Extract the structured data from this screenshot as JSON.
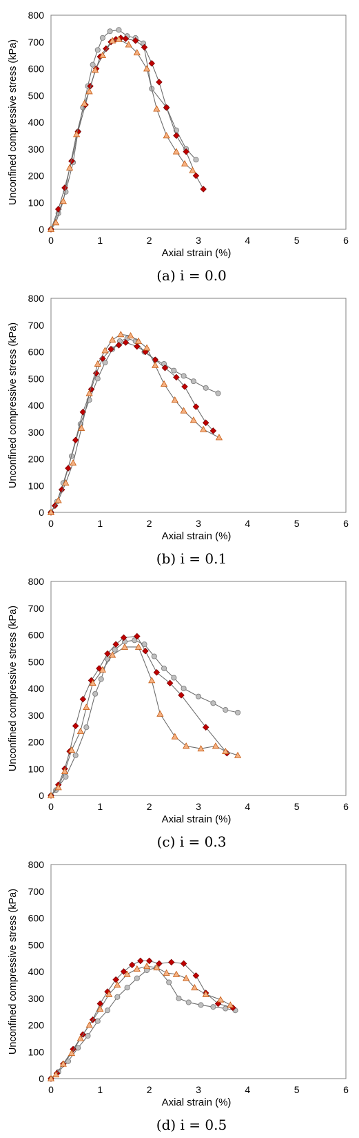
{
  "chart_data": [
    {
      "type": "scatter",
      "caption": "(a) i = 0.0",
      "xlabel": "Axial strain (%)",
      "ylabel": "Unconfined compressive stress (kPa)",
      "xlim": [
        0,
        6
      ],
      "ylim": [
        0,
        800
      ],
      "xticks": [
        "0",
        "1",
        "2",
        "3",
        "4",
        "5",
        "6"
      ],
      "yticks": [
        "0",
        "100",
        "200",
        "300",
        "400",
        "500",
        "600",
        "700",
        "800"
      ],
      "grid": false,
      "legend": "none",
      "series": [
        {
          "marker": "circle",
          "color": "#BFBFBF",
          "x": [
            0,
            0.15,
            0.3,
            0.45,
            0.55,
            0.65,
            0.75,
            0.85,
            0.95,
            1.05,
            1.2,
            1.38,
            1.55,
            1.72,
            1.88,
            2.05,
            2.35,
            2.55,
            2.75,
            2.95
          ],
          "y": [
            0,
            60,
            140,
            250,
            365,
            455,
            535,
            615,
            670,
            715,
            740,
            745,
            722,
            715,
            695,
            525,
            455,
            370,
            300,
            260
          ]
        },
        {
          "marker": "diamond",
          "color": "#C00000",
          "x": [
            0,
            0.15,
            0.28,
            0.42,
            0.55,
            0.7,
            0.8,
            0.92,
            1.0,
            1.12,
            1.22,
            1.32,
            1.42,
            1.52,
            1.72,
            1.9,
            2.05,
            2.2,
            2.35,
            2.55,
            2.75,
            2.95,
            3.1
          ],
          "y": [
            0,
            75,
            155,
            255,
            365,
            465,
            535,
            600,
            645,
            675,
            700,
            710,
            715,
            712,
            705,
            680,
            620,
            550,
            455,
            350,
            290,
            200,
            150
          ]
        },
        {
          "marker": "triangle",
          "color": "#F4B183",
          "x": [
            0,
            0.1,
            0.25,
            0.38,
            0.52,
            0.68,
            0.78,
            0.9,
            1.05,
            1.25,
            1.38,
            1.58,
            1.75,
            1.95,
            2.15,
            2.35,
            2.55,
            2.72,
            2.88
          ],
          "y": [
            0,
            25,
            105,
            230,
            355,
            470,
            515,
            595,
            650,
            705,
            710,
            690,
            660,
            600,
            450,
            350,
            290,
            245,
            220
          ]
        }
      ]
    },
    {
      "type": "scatter",
      "caption": "(b) i = 0.1",
      "xlabel": "Axial strain (%)",
      "ylabel": "Unconfined compressive stress (kPa)",
      "xlim": [
        0,
        6
      ],
      "ylim": [
        0,
        800
      ],
      "xticks": [
        "0",
        "1",
        "2",
        "3",
        "4",
        "5",
        "6"
      ],
      "yticks": [
        "0",
        "100",
        "200",
        "300",
        "400",
        "500",
        "600",
        "700",
        "800"
      ],
      "grid": false,
      "legend": "none",
      "series": [
        {
          "marker": "circle",
          "color": "#BFBFBF",
          "x": [
            0,
            0.12,
            0.25,
            0.42,
            0.6,
            0.78,
            0.95,
            1.1,
            1.25,
            1.4,
            1.55,
            1.72,
            1.9,
            2.12,
            2.3,
            2.5,
            2.7,
            2.9,
            3.15,
            3.4
          ],
          "y": [
            0,
            40,
            110,
            210,
            330,
            420,
            500,
            560,
            610,
            640,
            650,
            640,
            600,
            570,
            555,
            530,
            510,
            490,
            465,
            445
          ]
        },
        {
          "marker": "diamond",
          "color": "#C00000",
          "x": [
            0,
            0.08,
            0.22,
            0.35,
            0.5,
            0.65,
            0.82,
            0.92,
            1.05,
            1.22,
            1.38,
            1.52,
            1.75,
            1.92,
            2.12,
            2.32,
            2.55,
            2.72,
            2.95,
            3.15,
            3.3
          ],
          "y": [
            0,
            25,
            85,
            165,
            270,
            375,
            460,
            520,
            575,
            610,
            625,
            635,
            620,
            600,
            570,
            540,
            505,
            470,
            395,
            335,
            305
          ]
        },
        {
          "marker": "triangle",
          "color": "#F4B183",
          "x": [
            0,
            0.15,
            0.3,
            0.45,
            0.62,
            0.78,
            0.95,
            1.1,
            1.25,
            1.42,
            1.62,
            1.78,
            1.95,
            2.12,
            2.3,
            2.52,
            2.7,
            2.9,
            3.1,
            3.42
          ],
          "y": [
            0,
            45,
            110,
            185,
            315,
            445,
            555,
            605,
            645,
            665,
            660,
            640,
            615,
            550,
            480,
            420,
            380,
            345,
            310,
            280
          ]
        }
      ]
    },
    {
      "type": "scatter",
      "caption": "(c) i = 0.3",
      "xlabel": "Axial strain (%)",
      "ylabel": "Unconfined compressive stress (kPa)",
      "xlim": [
        0,
        6
      ],
      "ylim": [
        0,
        800
      ],
      "xticks": [
        "0",
        "1",
        "2",
        "3",
        "4",
        "5",
        "6"
      ],
      "yticks": [
        "0",
        "100",
        "200",
        "300",
        "400",
        "500",
        "600",
        "700",
        "800"
      ],
      "grid": false,
      "legend": "none",
      "series": [
        {
          "marker": "circle",
          "color": "#BFBFBF",
          "x": [
            0,
            0.1,
            0.3,
            0.5,
            0.72,
            0.9,
            1.02,
            1.15,
            1.3,
            1.5,
            1.7,
            1.9,
            2.1,
            2.3,
            2.5,
            2.7,
            3.0,
            3.3,
            3.55,
            3.8
          ],
          "y": [
            0,
            20,
            70,
            150,
            255,
            380,
            435,
            510,
            545,
            575,
            580,
            565,
            520,
            475,
            440,
            400,
            370,
            345,
            320,
            310
          ]
        },
        {
          "marker": "diamond",
          "color": "#C00000",
          "x": [
            0,
            0.15,
            0.28,
            0.38,
            0.5,
            0.65,
            0.82,
            0.98,
            1.15,
            1.32,
            1.48,
            1.75,
            1.92,
            2.15,
            2.42,
            2.65,
            3.15,
            3.58
          ],
          "y": [
            0,
            40,
            100,
            165,
            260,
            360,
            430,
            475,
            530,
            565,
            590,
            595,
            540,
            460,
            420,
            375,
            255,
            158
          ]
        },
        {
          "marker": "triangle",
          "color": "#F4B183",
          "x": [
            0,
            0.15,
            0.28,
            0.42,
            0.6,
            0.72,
            0.85,
            1.05,
            1.25,
            1.5,
            1.78,
            2.05,
            2.22,
            2.52,
            2.75,
            3.05,
            3.35,
            3.55,
            3.8
          ],
          "y": [
            0,
            30,
            90,
            170,
            240,
            330,
            420,
            470,
            525,
            555,
            555,
            430,
            305,
            220,
            185,
            175,
            185,
            165,
            150
          ]
        }
      ]
    },
    {
      "type": "scatter",
      "caption": "(d) i = 0.5",
      "xlabel": "Axial strain (%)",
      "ylabel": "Unconfined compressive stress (kPa)",
      "xlim": [
        0,
        6
      ],
      "ylim": [
        0,
        800
      ],
      "xticks": [
        "0",
        "1",
        "2",
        "3",
        "4",
        "5",
        "6"
      ],
      "yticks": [
        "0",
        "100",
        "200",
        "300",
        "400",
        "500",
        "600",
        "700",
        "800"
      ],
      "grid": false,
      "legend": "none",
      "series": [
        {
          "marker": "circle",
          "color": "#BFBFBF",
          "x": [
            0,
            0.15,
            0.35,
            0.55,
            0.75,
            0.95,
            1.15,
            1.35,
            1.55,
            1.75,
            1.95,
            2.15,
            2.4,
            2.6,
            2.8,
            3.05,
            3.3,
            3.55,
            3.75
          ],
          "y": [
            0,
            25,
            65,
            115,
            160,
            215,
            255,
            305,
            340,
            375,
            405,
            415,
            360,
            300,
            285,
            275,
            268,
            262,
            255
          ]
        },
        {
          "marker": "diamond",
          "color": "#C00000",
          "x": [
            0,
            0.12,
            0.25,
            0.45,
            0.65,
            0.85,
            1.0,
            1.15,
            1.32,
            1.48,
            1.65,
            1.82,
            2.0,
            2.2,
            2.45,
            2.7,
            2.95,
            3.15,
            3.4,
            3.7
          ],
          "y": [
            0,
            20,
            55,
            110,
            165,
            220,
            280,
            325,
            370,
            400,
            425,
            440,
            440,
            430,
            435,
            430,
            385,
            320,
            280,
            265
          ]
        },
        {
          "marker": "triangle",
          "color": "#F4B183",
          "x": [
            0,
            0.1,
            0.25,
            0.42,
            0.6,
            0.78,
            1.0,
            1.18,
            1.35,
            1.55,
            1.75,
            1.95,
            2.15,
            2.35,
            2.55,
            2.75,
            2.92,
            3.15,
            3.45,
            3.65
          ],
          "y": [
            0,
            15,
            55,
            95,
            150,
            200,
            260,
            315,
            350,
            390,
            410,
            420,
            415,
            395,
            390,
            375,
            340,
            315,
            295,
            275
          ]
        }
      ]
    }
  ]
}
